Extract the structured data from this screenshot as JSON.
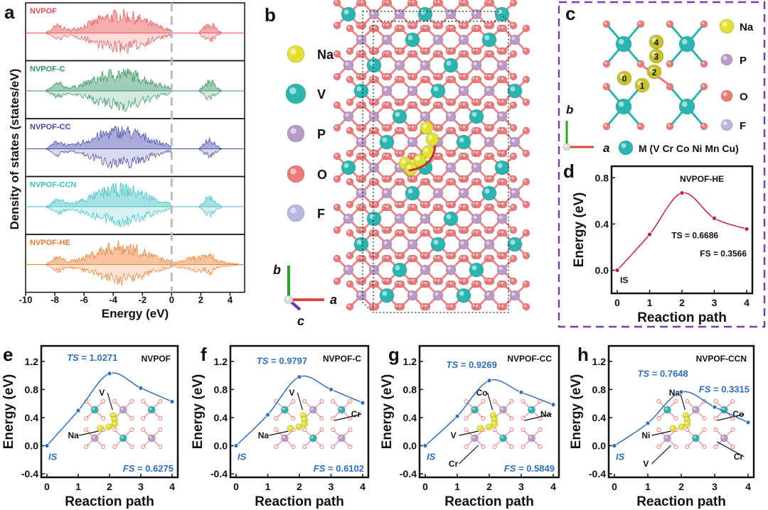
{
  "panel_letters": {
    "a": "a",
    "b": "b",
    "c": "c",
    "d": "d",
    "e": "e",
    "f": "f",
    "g": "g",
    "h": "h"
  },
  "panel_a": {
    "ylabel": "Density of states (states/eV)",
    "xlabel": "Energy (eV)",
    "xticks": [
      "-10",
      "-8",
      "-6",
      "-4",
      "-2",
      "0",
      "2",
      "4"
    ],
    "series": [
      {
        "name": "NVPOF",
        "color": "#ee4a4a"
      },
      {
        "name": "NVPOF-C",
        "color": "#2f8f5a"
      },
      {
        "name": "NVPOF-CC",
        "color": "#4046a8"
      },
      {
        "name": "NVPOF-CCN",
        "color": "#38bfc4"
      },
      {
        "name": "NVPOF-HE",
        "color": "#f07a2a"
      }
    ]
  },
  "panel_b": {
    "legend": [
      {
        "label": "Na",
        "color": "#e2e030"
      },
      {
        "label": "V",
        "color": "#2bb5b0"
      },
      {
        "label": "P",
        "color": "#b79ac6"
      },
      {
        "label": "O",
        "color": "#ec7a7a"
      },
      {
        "label": "F",
        "color": "#b6b8e0"
      }
    ],
    "axes": {
      "b": "b",
      "a": "a",
      "c": "c"
    }
  },
  "panel_c": {
    "legend": [
      "Na",
      "P",
      "O",
      "F"
    ],
    "metal_label": "M (V Cr Co Ni Mn Cu)",
    "site_numbers": [
      "0",
      "1",
      "2",
      "3",
      "4"
    ],
    "axes": {
      "b": "b",
      "a": "a"
    }
  },
  "chart_data": [
    {
      "panel": "d",
      "type": "line",
      "title": "NVPOF-HE",
      "xlabel": "Reaction path",
      "ylabel": "Energy (eV)",
      "x": [
        0,
        1,
        2,
        3,
        4
      ],
      "y": [
        0,
        0.31,
        0.6686,
        0.45,
        0.3566
      ],
      "ylim": [
        -0.2,
        0.9
      ],
      "yticks": [
        "0.0",
        "0.4",
        "0.8"
      ],
      "xticks": [
        "0",
        "1",
        "2",
        "3",
        "4"
      ],
      "color": "#c2185b",
      "annotations": {
        "is": "IS",
        "ts": "TS = 0.6686",
        "fs": "FS = 0.3566"
      }
    },
    {
      "panel": "e",
      "type": "line",
      "title": "NVPOF",
      "xlabel": "Reaction path",
      "ylabel": "Energy (eV)",
      "x": [
        0,
        1,
        2,
        3,
        4
      ],
      "y": [
        0,
        0.5,
        1.0271,
        0.82,
        0.6275
      ],
      "ylim": [
        -0.45,
        1.42
      ],
      "yticks": [
        "-0.4",
        "0.0",
        "0.4",
        "0.8",
        "1.2"
      ],
      "xticks": [
        "0",
        "1",
        "2",
        "3",
        "4"
      ],
      "color": "#2f6fc0",
      "annotations": {
        "is": "IS",
        "ts_k": "TS",
        "ts": " = 1.0271",
        "fs_k": "FS",
        "fs": " = 0.6275"
      },
      "inset_labels": [
        "V",
        "Na"
      ]
    },
    {
      "panel": "f",
      "type": "line",
      "title": "NVPOF-C",
      "xlabel": "Reaction path",
      "ylabel": "Energy (eV)",
      "x": [
        0,
        1,
        2,
        3,
        4
      ],
      "y": [
        0,
        0.44,
        0.9797,
        0.8,
        0.6102
      ],
      "ylim": [
        -0.45,
        1.42
      ],
      "yticks": [
        "-0.4",
        "0.0",
        "0.4",
        "0.8",
        "1.2"
      ],
      "xticks": [
        "0",
        "1",
        "2",
        "3",
        "4"
      ],
      "color": "#2f6fc0",
      "annotations": {
        "is": "IS",
        "ts_k": "TS",
        "ts": " = 0.9797",
        "fs_k": "FS",
        "fs": " = 0.6102"
      },
      "inset_labels": [
        "V",
        "Na",
        "Cr"
      ]
    },
    {
      "panel": "g",
      "type": "line",
      "title": "NVPOF-CC",
      "xlabel": "Reaction path",
      "ylabel": "Energy (eV)",
      "x": [
        0,
        1,
        2,
        3,
        4
      ],
      "y": [
        0,
        0.42,
        0.9269,
        0.76,
        0.5849
      ],
      "ylim": [
        -0.45,
        1.42
      ],
      "yticks": [
        "-0.4",
        "0.0",
        "0.4",
        "0.8",
        "1.2"
      ],
      "xticks": [
        "0",
        "1",
        "2",
        "3",
        "4"
      ],
      "color": "#2f6fc0",
      "annotations": {
        "is": "IS",
        "ts_k": "TS",
        "ts": " = 0.9269",
        "fs_k": "FS",
        "fs": " = 0.5849"
      },
      "inset_labels": [
        "Co",
        "V",
        "Na",
        "Cr"
      ]
    },
    {
      "panel": "h",
      "type": "line",
      "title": "NVPOF-CCN",
      "xlabel": "Reaction path",
      "ylabel": "Energy (eV)",
      "x": [
        0,
        1,
        2,
        3,
        4
      ],
      "y": [
        0,
        0.32,
        0.7648,
        0.55,
        0.3315
      ],
      "ylim": [
        -0.45,
        1.42
      ],
      "yticks": [
        "-0.4",
        "0.0",
        "0.4",
        "0.8",
        "1.2"
      ],
      "xticks": [
        "0",
        "1",
        "2",
        "3",
        "4"
      ],
      "color": "#2f6fc0",
      "annotations": {
        "is": "IS",
        "ts_k": "TS",
        "ts": " = 0.7648",
        "fs_k": "FS",
        "fs": " = 0.3315"
      },
      "inset_labels": [
        "Na",
        "Ni",
        "Co",
        "V",
        "Cr"
      ]
    }
  ]
}
